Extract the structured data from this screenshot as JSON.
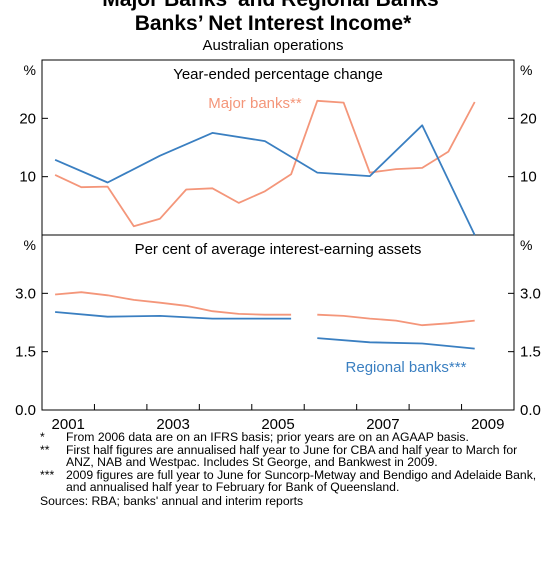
{
  "title_line1": "Major Banks' and Regional Banks'",
  "title_line2": "Banks’ Net Interest Income*",
  "subtitle": "Australian operations",
  "chart_data": [
    {
      "type": "line",
      "panel_title": "Year-ended percentage change",
      "ylabel_left": "%",
      "ylabel_right": "%",
      "ylim": [
        0,
        30
      ],
      "yticks": [
        10,
        20
      ],
      "xlim": [
        2000.5,
        2009.5
      ],
      "series": [
        {
          "name": "Major banks**",
          "color": "#f4967a",
          "x": [
            2000.75,
            2001.25,
            2001.75,
            2002.25,
            2002.75,
            2003.25,
            2003.75,
            2004.25,
            2004.75,
            2005.25,
            2005.75,
            2006.25,
            2006.75,
            2007.25,
            2007.75,
            2008.25,
            2008.75
          ],
          "y": [
            10.3,
            8.2,
            8.3,
            1.5,
            2.8,
            7.8,
            8.0,
            5.5,
            7.5,
            10.4,
            23.0,
            22.7,
            10.7,
            11.3,
            11.5,
            14.3,
            22.8
          ]
        },
        {
          "name": "Regional banks***",
          "color": "#3a7fc1",
          "x": [
            2000.75,
            2001.75,
            2002.75,
            2003.75,
            2004.75,
            2005.75,
            2006.75,
            2007.75,
            2008.75
          ],
          "y": [
            12.9,
            9.0,
            13.6,
            17.5,
            16.1,
            10.7,
            10.1,
            18.8,
            0.0
          ]
        }
      ]
    },
    {
      "type": "line",
      "panel_title": "Per cent of average interest-earning assets",
      "ylabel_left": "%",
      "ylabel_right": "%",
      "ylim": [
        0,
        4.5
      ],
      "yticks": [
        "0.0",
        "1.5",
        "3.0"
      ],
      "xlim": [
        2000.5,
        2009.5
      ],
      "xticks": [
        "2001",
        "2003",
        "2005",
        "2007",
        "2009"
      ],
      "series": [
        {
          "name": "Major banks**",
          "color": "#f4967a",
          "segments": [
            {
              "x": [
                2000.75,
                2001.25,
                2001.75,
                2002.25,
                2002.75,
                2003.25,
                2003.75,
                2004.25,
                2004.75,
                2005.25
              ],
              "y": [
                2.97,
                3.03,
                2.95,
                2.83,
                2.76,
                2.68,
                2.54,
                2.47,
                2.45,
                2.45
              ]
            },
            {
              "x": [
                2005.75,
                2006.25,
                2006.75,
                2007.25,
                2007.75,
                2008.25,
                2008.75
              ],
              "y": [
                2.45,
                2.42,
                2.35,
                2.3,
                2.18,
                2.23,
                2.3
              ]
            }
          ]
        },
        {
          "name": "Regional banks***",
          "color": "#3a7fc1",
          "segments": [
            {
              "x": [
                2000.75,
                2001.75,
                2002.75,
                2003.75,
                2004.75,
                2005.25
              ],
              "y": [
                2.52,
                2.4,
                2.42,
                2.35,
                2.35,
                2.35
              ]
            },
            {
              "x": [
                2005.75,
                2006.75,
                2007.75,
                2008.75
              ],
              "y": [
                1.85,
                1.74,
                1.71,
                1.58
              ]
            }
          ]
        }
      ]
    }
  ],
  "notes": [
    {
      "mark": "*",
      "text": "From 2006 data are on an IFRS basis; prior years are on an AGAAP basis."
    },
    {
      "mark": "**",
      "text": "First half figures are annualised half year to June for CBA and half year to March for ANZ, NAB and Westpac. Includes St George, and Bankwest in 2009."
    },
    {
      "mark": "***",
      "text": "2009 figures are full year to June for Suncorp-Metway and Bendigo and Adelaide Bank, and annualised half year to February for Bank of Queensland."
    }
  ],
  "sources": "Sources: RBA; banks' annual and interim reports"
}
